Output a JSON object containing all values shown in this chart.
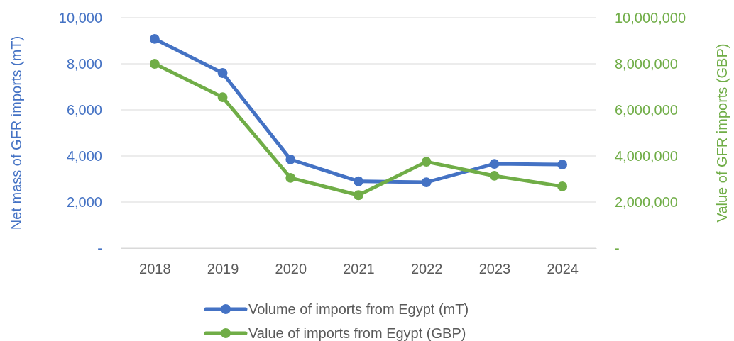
{
  "chart_data": {
    "type": "line",
    "categories": [
      "2018",
      "2019",
      "2020",
      "2021",
      "2022",
      "2023",
      "2024"
    ],
    "ylabel": "Net mass of GFR imports (mT)",
    "y2label": "Value of GFR imports (GBP)",
    "ylim": [
      0,
      10000
    ],
    "yticks": [
      {
        "value": 0,
        "label": "-"
      },
      {
        "value": 2000,
        "label": "2,000"
      },
      {
        "value": 4000,
        "label": "4,000"
      },
      {
        "value": 6000,
        "label": "6,000"
      },
      {
        "value": 8000,
        "label": "8,000"
      },
      {
        "value": 10000,
        "label": "10,000"
      }
    ],
    "y2lim": [
      0,
      10000000
    ],
    "y2ticks": [
      {
        "value": 0,
        "label": "-"
      },
      {
        "value": 2000000,
        "label": "2,000,000"
      },
      {
        "value": 4000000,
        "label": "4,000,000"
      },
      {
        "value": 6000000,
        "label": "6,000,000"
      },
      {
        "value": 8000000,
        "label": "8,000,000"
      },
      {
        "value": 10000000,
        "label": "10,000,000"
      }
    ],
    "series": [
      {
        "name": "Volume of imports from Egypt (mT)",
        "color": "#4472c4",
        "values": [
          9080,
          7600,
          3850,
          2900,
          2860,
          3660,
          3630
        ]
      },
      {
        "name": "Value of imports from Egypt (GBP)",
        "color": "#70ad47",
        "axis": "y2",
        "values": [
          8000000,
          6550000,
          3050000,
          2300000,
          3750000,
          3140000,
          2680000
        ]
      }
    ],
    "grid": "y",
    "legend": "bottom",
    "marker": "circle",
    "line_style": "solid"
  }
}
